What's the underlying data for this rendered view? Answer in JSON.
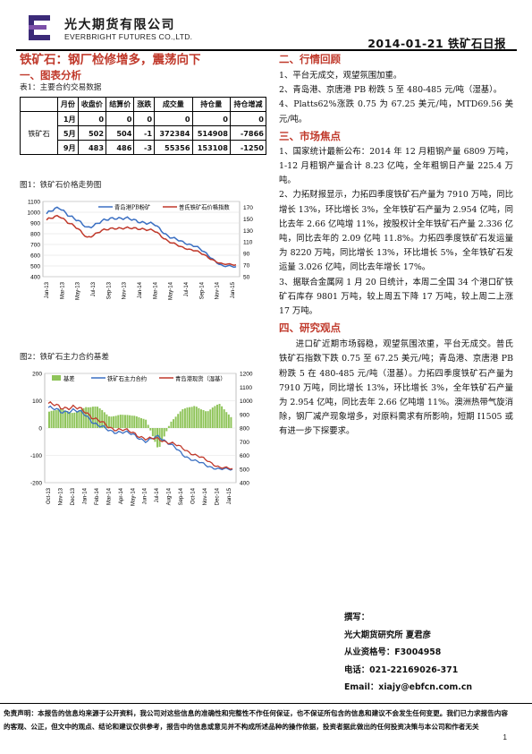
{
  "header": {
    "company_cn": "光大期货有限公司",
    "company_en": "EVERBRIGHT FUTURES CO.,LTD.",
    "date_title": "2014-01-21 铁矿石日报"
  },
  "left": {
    "headline": "铁矿石：钢厂检修增多，震荡向下",
    "section1": "一、图表分析",
    "table_caption": "表1：主要合约交易数据",
    "table": {
      "headers": [
        "",
        "月份",
        "收盘价",
        "结算价",
        "涨跌",
        "成交量",
        "持仓量",
        "持仓增减"
      ],
      "product": "铁矿石",
      "rows": [
        [
          "1月",
          "0",
          "0",
          "0",
          "0",
          "0",
          "0"
        ],
        [
          "5月",
          "502",
          "504",
          "-1",
          "372384",
          "514908",
          "-7866"
        ],
        [
          "9月",
          "483",
          "486",
          "-3",
          "55356",
          "153108",
          "-1250"
        ]
      ]
    },
    "chart1": {
      "caption": "图1：铁矿石价格走势图",
      "legend": [
        "青岛港PB粉矿",
        "普氏铁矿石价格指数"
      ]
    },
    "chart2": {
      "caption": "图2：铁矿石主力合约基差",
      "legend": [
        "基差",
        "铁矿石主力合约",
        "青岛港现货（湿基）"
      ]
    }
  },
  "chart_data": [
    {
      "type": "line",
      "x_ticks": [
        "Jan-13",
        "Mar-13",
        "May-13",
        "Jul-13",
        "Sep-13",
        "Nov-13",
        "Jan-14",
        "Mar-14",
        "May-14",
        "Jul-14",
        "Sep-14",
        "Nov-14",
        "Jan-15"
      ],
      "y_left_ticks": [
        "400",
        "500",
        "600",
        "700",
        "800",
        "900",
        "1000",
        "1100"
      ],
      "y_left_range": [
        400,
        1100
      ],
      "y_right_ticks": [
        "50",
        "70",
        "90",
        "110",
        "130",
        "150",
        "170"
      ],
      "y_right_range": [
        50,
        180
      ],
      "series": [
        {
          "name": "青岛港PB粉矿",
          "axis": "left",
          "color": "#3a6fc2",
          "values": [
            985,
            1045,
            940,
            860,
            905,
            955,
            935,
            915,
            880,
            780,
            720,
            690,
            590,
            500,
            490
          ]
        },
        {
          "name": "普氏铁矿石价格指数",
          "axis": "right",
          "color": "#c0392b",
          "values": [
            148,
            155,
            138,
            118,
            128,
            135,
            133,
            134,
            128,
            112,
            100,
            96,
            82,
            72,
            70
          ]
        }
      ]
    },
    {
      "type": "bar+line",
      "x_ticks": [
        "Oct-13",
        "Nov-13",
        "Dec-13",
        "Jan-14",
        "Feb-14",
        "Mar-14",
        "Apr-14",
        "May-14",
        "Jun-14",
        "Jul-14",
        "Aug-14",
        "Sep-14",
        "Oct-14",
        "Nov-14",
        "Dec-14",
        "Jan-15"
      ],
      "y_left_ticks": [
        "-200",
        "-100",
        "0",
        "100",
        "200"
      ],
      "y_left_range": [
        -200,
        200
      ],
      "y_right_ticks": [
        "400",
        "500",
        "600",
        "700",
        "800",
        "900",
        "1000",
        "1100",
        "1200"
      ],
      "y_right_range": [
        400,
        1200
      ],
      "series": [
        {
          "name": "基差",
          "kind": "bar",
          "color": "#8fc45a",
          "values": [
            60,
            70,
            55,
            75,
            80,
            40,
            50,
            45,
            30,
            -80,
            20,
            70,
            80,
            60,
            90,
            40
          ]
        },
        {
          "name": "铁矿石主力合约",
          "kind": "line",
          "color": "#3a6fc2",
          "values": [
            950,
            920,
            930,
            900,
            820,
            780,
            770,
            750,
            700,
            740,
            680,
            600,
            560,
            520,
            500,
            495
          ]
        },
        {
          "name": "青岛港现货（湿基）",
          "kind": "line",
          "color": "#c0392b",
          "values": [
            980,
            950,
            955,
            920,
            860,
            800,
            790,
            760,
            720,
            720,
            690,
            650,
            600,
            560,
            510,
            500
          ]
        }
      ]
    }
  ],
  "right": {
    "sec2": "二、行情回顾",
    "review": [
      "1、平台无成交，观望氛围加重。",
      "2、青岛港、京唐港 PB 粉跌 5 至 480-485 元/吨（湿基）。",
      "4、Platts62%涨跌 0.75 为 67.25 美元/吨，MTD69.56 美元/吨。"
    ],
    "sec3": "三、市场焦点",
    "focus": [
      "1、国家统计最新公布：2014 年 12 月粗钢产量 6809 万吨，1-12 月粗钢产量合计 8.23 亿吨，全年粗钢日产量 225.4 万吨。",
      "2、力拓财报显示，力拓四季度铁矿石产量为 7910 万吨，同比增长 13%，环比增长 3%，全年铁矿石产量为 2.954 亿吨，同比去年 2.66 亿吨增 11%，按股权计全年铁矿石产量 2.336 亿吨，同比去年的 2.09 亿吨 11.8%。力拓四季度铁矿石发运量为 8220 万吨，同比增长 13%，环比增长 5%，全年铁矿石发运量 3.026 亿吨，同比去年增长 17%。",
      "3、据联合金属网 1 月 20 日统计，本周二全国 34 个港口矿铁矿石库存 9801 万吨，较上周五下降 17 万吨，较上周二上涨 17 万吨。"
    ],
    "sec4": "四、研究观点",
    "view": "进口矿近期市场弱稳，观望氛围浓重，平台无成交。普氏铁矿石指数下跌 0.75 至 67.25 美元/吨；青岛港、京唐港 PB 粉跌 5 在 480-485 元/吨（湿基）。力拓四季度铁矿石产量为 7910 万吨，同比增长 13%，环比增长 3%，全年铁矿石产量为 2.954 亿吨，同比去年 2.66 亿吨增 11%。澳洲热带气旋消除，钢厂减产现象增多，对原料需求有所影响，短期 I1505 或有进一步下探要求。"
  },
  "signature": {
    "title": "撰写：",
    "org": "光大期货研究所 夏君彦",
    "license": "从业资格号：F3004958",
    "phone": "电话：021-22169026-371",
    "email": "Email：xiajy@ebfcn.com.cn"
  },
  "footer": {
    "disclaimer": "免责声明：本报告的信息均来源于公开资料，我公司对这些信息的准确性和完整性不作任何保证，也不保证所包含的信息和建议不会发生任何变更。我们已力求报告内容的客观、公正，但文中的观点、结论和建议仅供参考，报告中的信息或意见并不构成所述品种的操作依据，投资者据此做出的任何投资决策与本公司和作者无关",
    "page": "1"
  }
}
